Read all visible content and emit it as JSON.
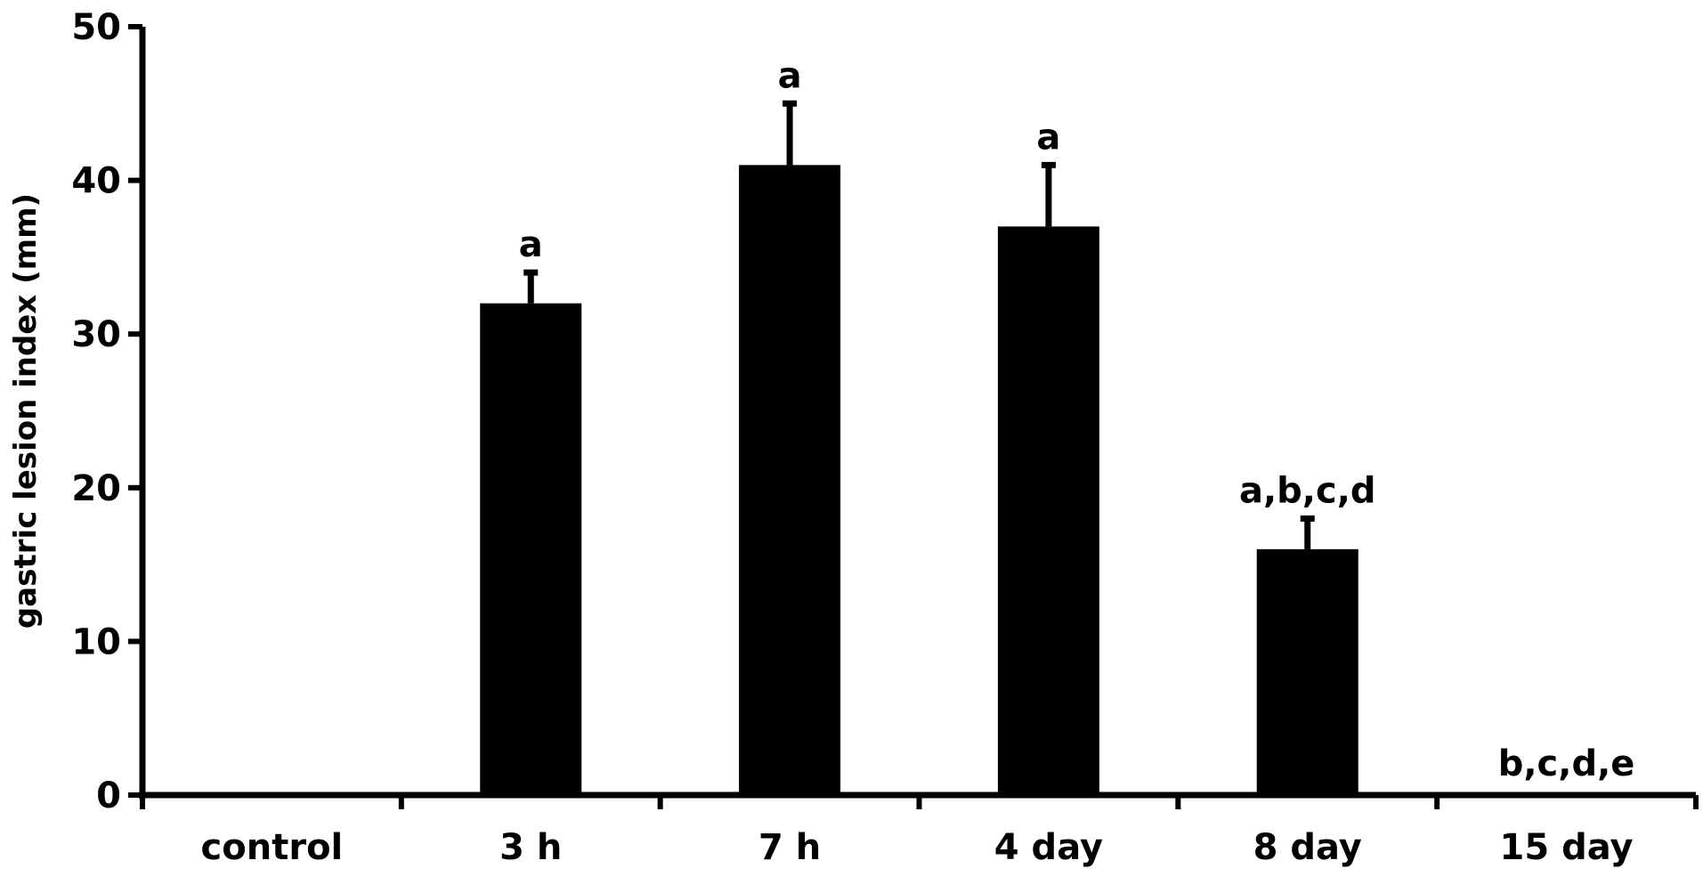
{
  "chart_data": {
    "type": "bar",
    "categories": [
      "control",
      "3 h",
      "7 h",
      "4 day",
      "8 day",
      "15 day"
    ],
    "values": [
      0,
      32,
      41,
      37,
      16,
      0
    ],
    "error_upper": [
      0,
      2,
      4,
      4,
      2,
      0
    ],
    "significance_labels": [
      "",
      "a",
      "a",
      "a",
      "a,b,c,d",
      "b,c,d,e"
    ],
    "ylabel": "gastric lesion index (mm)",
    "xlabel": "",
    "ylim": [
      0,
      50
    ],
    "yticks": [
      0,
      10,
      20,
      30,
      40,
      50
    ],
    "bar_color": "#000000",
    "grid": false,
    "legend": "none"
  }
}
